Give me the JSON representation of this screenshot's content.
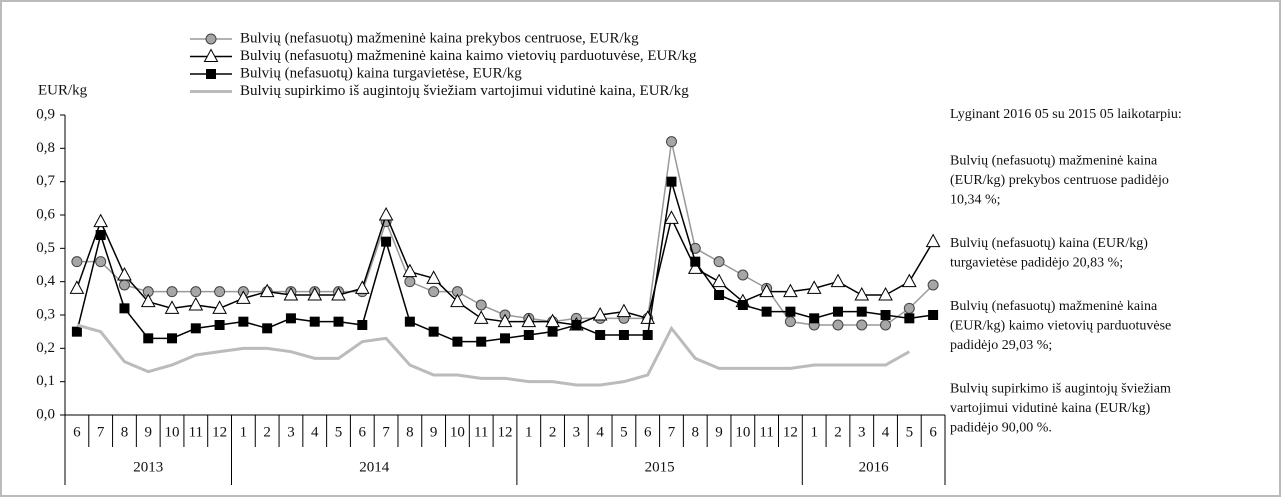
{
  "chart_data": {
    "type": "line",
    "ylabel": "EUR/kg",
    "categories": [
      "6",
      "7",
      "8",
      "9",
      "10",
      "11",
      "12",
      "1",
      "2",
      "3",
      "4",
      "5",
      "6",
      "7",
      "8",
      "9",
      "10",
      "11",
      "12",
      "1",
      "2",
      "3",
      "4",
      "5",
      "6",
      "7",
      "8",
      "9",
      "10",
      "11",
      "12",
      "1",
      "2",
      "3",
      "4",
      "5",
      "6"
    ],
    "years": [
      "2013",
      "2014",
      "2015",
      "2016"
    ],
    "ylim": [
      0,
      0.9
    ],
    "yticks": [
      {
        "value": 0,
        "label": "0,0"
      },
      {
        "value": 0.1,
        "label": "0,1"
      },
      {
        "value": 0.2,
        "label": "0,2"
      },
      {
        "value": 0.3,
        "label": "0,3"
      },
      {
        "value": 0.4,
        "label": "0,4"
      },
      {
        "value": 0.5,
        "label": "0,5"
      },
      {
        "value": 0.6,
        "label": "0,6"
      },
      {
        "value": 0.7,
        "label": "0,7"
      },
      {
        "value": 0.8,
        "label": "0,8"
      },
      {
        "value": 0.9,
        "label": "0,9"
      }
    ],
    "series": [
      {
        "name": "Bulvių (nefasuotų) mažmeninė kaina prekybos centruose, EUR/kg",
        "color": "#999999",
        "marker": "circle",
        "values": [
          0.46,
          0.46,
          0.39,
          0.37,
          0.37,
          0.37,
          0.37,
          0.37,
          0.37,
          0.37,
          0.37,
          0.37,
          0.37,
          0.58,
          0.4,
          0.37,
          0.37,
          0.33,
          0.3,
          0.29,
          0.28,
          0.29,
          0.29,
          0.29,
          0.29,
          0.82,
          0.5,
          0.46,
          0.42,
          0.38,
          0.28,
          0.27,
          0.27,
          0.27,
          0.27,
          0.32,
          0.39
        ]
      },
      {
        "name": "Bulvių (nefasuotų) mažmeninė kaina kaimo vietovių parduotuvėse, EUR/kg",
        "color": "#000000",
        "marker": "triangle",
        "values": [
          0.38,
          0.58,
          0.42,
          0.34,
          0.32,
          0.33,
          0.32,
          0.35,
          0.37,
          0.36,
          0.36,
          0.36,
          0.38,
          0.6,
          0.43,
          0.41,
          0.34,
          0.29,
          0.28,
          0.28,
          0.28,
          0.27,
          0.3,
          0.31,
          0.29,
          0.59,
          0.44,
          0.4,
          0.34,
          0.37,
          0.37,
          0.38,
          0.4,
          0.36,
          0.36,
          0.4,
          0.52
        ]
      },
      {
        "name": "Bulvių (nefasuotų) kaina turgavietėse, EUR/kg",
        "color": "#000000",
        "marker": "square",
        "values": [
          0.25,
          0.54,
          0.32,
          0.23,
          0.23,
          0.26,
          0.27,
          0.28,
          0.26,
          0.29,
          0.28,
          0.28,
          0.27,
          0.52,
          0.28,
          0.25,
          0.22,
          0.22,
          0.23,
          0.24,
          0.25,
          0.27,
          0.24,
          0.24,
          0.24,
          0.7,
          0.46,
          0.36,
          0.33,
          0.31,
          0.31,
          0.29,
          0.31,
          0.31,
          0.3,
          0.29,
          0.3
        ]
      },
      {
        "name": "Bulvių supirkimo iš augintojų šviežiam vartojimui vidutinė kaina, EUR/kg",
        "color": "#bbbbbb",
        "marker": "none",
        "values": [
          0.27,
          0.25,
          0.16,
          0.13,
          0.15,
          0.18,
          0.19,
          0.2,
          0.2,
          0.19,
          0.17,
          0.17,
          0.22,
          0.23,
          0.15,
          0.12,
          0.12,
          0.11,
          0.11,
          0.1,
          0.1,
          0.09,
          0.09,
          0.1,
          0.12,
          0.26,
          0.17,
          0.14,
          0.14,
          0.14,
          0.14,
          0.15,
          0.15,
          0.15,
          0.15,
          0.19,
          null
        ]
      }
    ],
    "notes": [
      [
        "Lyginant 2016 05 su 2015 05 laikotarpiu:"
      ],
      [
        "Bulvių (nefasuotų) mažmeninė kaina",
        "(EUR/kg) prekybos centruose  padidėjo",
        "10,34 %;"
      ],
      [
        "Bulvių (nefasuotų) kaina (EUR/kg)",
        "turgavietėse padidėjo 20,83 %;"
      ],
      [
        "Bulvių (nefasuotų) mažmeninė kaina",
        "(EUR/kg) kaimo vietovių parduotuvėse",
        "padidėjo 29,03 %;"
      ],
      [
        "Bulvių supirkimo iš augintojų šviežiam",
        "vartojimui vidutinė kaina (EUR/kg)",
        "padidėjo 90,00 %."
      ]
    ]
  }
}
